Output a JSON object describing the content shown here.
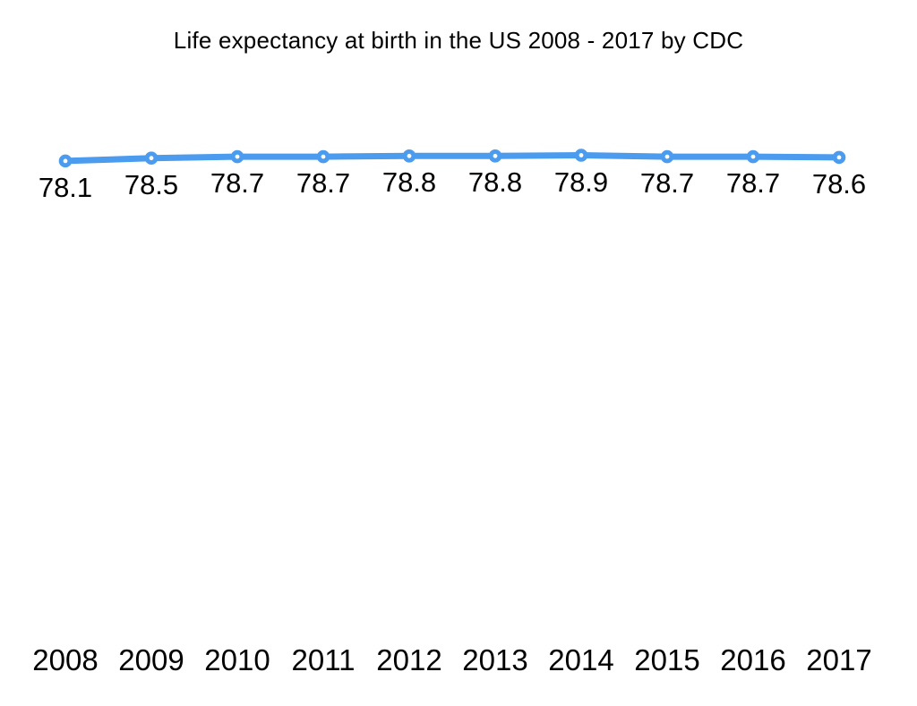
{
  "chart_data": {
    "type": "line",
    "title": "Life expectancy at birth in the US 2008 - 2017 by CDC",
    "categories": [
      "2008",
      "2009",
      "2010",
      "2011",
      "2012",
      "2013",
      "2014",
      "2015",
      "2016",
      "2017"
    ],
    "values": [
      78.1,
      78.5,
      78.7,
      78.7,
      78.8,
      78.8,
      78.9,
      78.7,
      78.7,
      78.6
    ],
    "data_labels": [
      "78.1",
      "78.5",
      "78.7",
      "78.7",
      "78.8",
      "78.8",
      "78.9",
      "78.7",
      "78.7",
      "78.6"
    ],
    "xlabel": "",
    "ylabel": "",
    "legend": "none",
    "grid": false,
    "axes_visible": false,
    "ylim_visible": [
      78.1,
      78.9
    ],
    "colors": {
      "line": "#4b9bee",
      "marker_fill": "#4b9bee",
      "marker_center": "#ffffff",
      "label_text": "#000000",
      "background": "#ffffff"
    }
  }
}
